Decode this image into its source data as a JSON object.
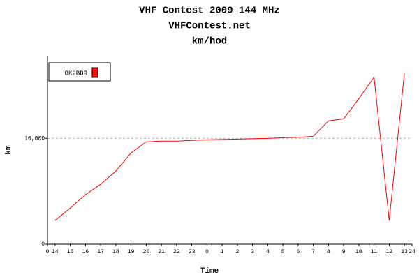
{
  "chart_data": {
    "type": "line",
    "title": "VHF Contest 2009 144 MHz",
    "subtitle": "VHFContest.net",
    "subtitle2": "km/hod",
    "x_label": "Time",
    "y_label": "km",
    "x": [
      0.5,
      1.5,
      2.5,
      3.5,
      4.5,
      5.5,
      6.5,
      7.5,
      8.5,
      9.5,
      10.5,
      11.5,
      12.5,
      13.5,
      14.5,
      15.5,
      16.5,
      17.5,
      18.5,
      19.5,
      20.5,
      21.5,
      22.5,
      23.5
    ],
    "series": [
      {
        "name": "OK2BDR",
        "color": "#ff0000",
        "values": [
          2237,
          3421,
          4671,
          5658,
          6908,
          8618,
          9671,
          9737,
          9737,
          9803,
          9868,
          9901,
          9934,
          9967,
          10000,
          10066,
          10099,
          10197,
          11645,
          11842,
          13750,
          15789,
          2237,
          16184
        ]
      }
    ],
    "xlim": [
      0,
      24
    ],
    "xticks": [
      0,
      {
        "value": 0.5,
        "label": "14"
      },
      {
        "value": 1.5,
        "label": "15"
      },
      {
        "value": 2.5,
        "label": "16"
      },
      {
        "value": 3.5,
        "label": "17"
      },
      {
        "value": 4.5,
        "label": "18"
      },
      {
        "value": 5.5,
        "label": "19"
      },
      {
        "value": 6.5,
        "label": "20"
      },
      {
        "value": 7.5,
        "label": "21"
      },
      {
        "value": 8.5,
        "label": "22"
      },
      {
        "value": 9.5,
        "label": "23"
      },
      {
        "value": 10.5,
        "label": "0"
      },
      {
        "value": 11.5,
        "label": "1"
      },
      {
        "value": 12.5,
        "label": "2"
      },
      {
        "value": 13.5,
        "label": "3"
      },
      {
        "value": 14.5,
        "label": "4"
      },
      {
        "value": 15.5,
        "label": "5"
      },
      {
        "value": 16.5,
        "label": "6"
      },
      {
        "value": 17.5,
        "label": "7"
      },
      {
        "value": 18.5,
        "label": "8"
      },
      {
        "value": 19.5,
        "label": "9"
      },
      {
        "value": 20.5,
        "label": "10"
      },
      {
        "value": 21.5,
        "label": "11"
      },
      {
        "value": 22.5,
        "label": "12"
      },
      {
        "value": 23.5,
        "label": "13"
      },
      24
    ],
    "ylim": [
      0,
      17800
    ],
    "yticks": [
      0,
      {
        "value": 10000,
        "label": "10,000"
      }
    ],
    "grid": true,
    "legend": "top-left"
  }
}
